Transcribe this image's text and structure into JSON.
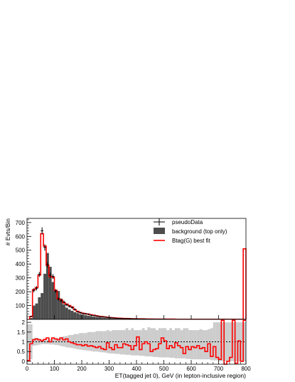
{
  "chart_data": [
    {
      "type": "bar",
      "panel": "main",
      "ylabel": "# Evts/Bin",
      "ylim": [
        0,
        730
      ],
      "yticks": [
        100,
        200,
        300,
        400,
        500,
        600,
        700
      ],
      "bin_width": 10,
      "x": [
        0,
        10,
        20,
        30,
        40,
        50,
        60,
        70,
        80,
        90,
        100,
        110,
        120,
        130,
        140,
        150,
        160,
        170,
        180,
        190,
        200,
        210,
        220,
        230,
        240,
        250,
        260,
        270,
        280,
        290,
        300,
        310,
        320,
        330,
        340,
        350,
        360,
        370,
        380,
        390,
        400,
        410,
        420,
        430,
        440,
        450,
        460,
        470,
        480,
        490,
        500,
        510,
        520,
        530,
        540,
        550,
        560,
        570,
        580,
        590,
        600,
        610,
        620,
        630,
        640,
        650,
        660,
        670,
        680,
        690,
        700,
        710,
        720,
        730,
        740,
        750,
        760,
        770,
        780,
        790
      ],
      "series": [
        {
          "name": "background (top only)",
          "style": "filled",
          "color": "#4d4d4d",
          "values": [
            0,
            10,
            100,
            115,
            160,
            190,
            330,
            480,
            380,
            270,
            205,
            205,
            150,
            110,
            85,
            72,
            62,
            52,
            45,
            38,
            34,
            30,
            26,
            23,
            20,
            17,
            15,
            13,
            11,
            9,
            8,
            7,
            6,
            5,
            5,
            4,
            4,
            3,
            3,
            3,
            2,
            2,
            2,
            2,
            1,
            1,
            1,
            1,
            1,
            1,
            1,
            1,
            1,
            1,
            1,
            1,
            1,
            1,
            1,
            1,
            1,
            1,
            1,
            1,
            1,
            1,
            1,
            1,
            1,
            1,
            1,
            1,
            1,
            1,
            1,
            1,
            1,
            1,
            1,
            1
          ]
        },
        {
          "name": "Btag(G) best fit",
          "style": "line",
          "color": "#ff0000",
          "values": [
            0,
            20,
            215,
            230,
            320,
            620,
            530,
            390,
            310,
            305,
            210,
            150,
            140,
            120,
            110,
            100,
            90,
            70,
            58,
            50,
            45,
            40,
            38,
            33,
            30,
            26,
            22,
            20,
            18,
            15,
            13,
            12,
            10,
            9,
            8,
            7,
            7,
            6,
            5,
            5,
            4,
            4,
            4,
            3,
            3,
            3,
            2,
            2,
            2,
            2,
            2,
            2,
            2,
            2,
            1,
            1,
            1,
            1,
            1,
            1,
            1,
            1,
            1,
            1,
            1,
            1,
            1,
            1,
            1,
            1,
            1,
            1,
            1,
            1,
            1,
            1,
            1,
            1,
            1,
            510
          ]
        },
        {
          "name": "pseudoData",
          "style": "points",
          "color": "#000000",
          "values": [
            0,
            22,
            210,
            225,
            325,
            640,
            520,
            395,
            320,
            310,
            205,
            148,
            135,
            125,
            105,
            95,
            85,
            72,
            55,
            48,
            42,
            40,
            36,
            30,
            28,
            24,
            20,
            19,
            17,
            14,
            12,
            11,
            9,
            8,
            7,
            6,
            6,
            5,
            5,
            4,
            4,
            3,
            3,
            3,
            2,
            2,
            2,
            2,
            2,
            2,
            2,
            1,
            1,
            1,
            1,
            1,
            1,
            1,
            1,
            1,
            1,
            1,
            1,
            1,
            1,
            1,
            1,
            1,
            1,
            1,
            1,
            1,
            1,
            1,
            1,
            1,
            1,
            1,
            1,
            1
          ]
        }
      ],
      "legend": {
        "placement": "top-right",
        "entries": [
          "pseudoData",
          "background (top only)",
          "Btag(G) best fit"
        ]
      }
    },
    {
      "type": "line",
      "panel": "ratio",
      "xlabel": "ET(tagged jet 0), GeV (in lepton-inclusive region)",
      "xlim": [
        0,
        800
      ],
      "xticks": [
        0,
        100,
        200,
        300,
        400,
        500,
        600,
        700,
        800
      ],
      "ylim": [
        -0.15,
        2.15
      ],
      "yticks": [
        0,
        0.5,
        1,
        1.5,
        2
      ],
      "reference_line": 1,
      "bin_width": 10,
      "x": [
        0,
        10,
        20,
        30,
        40,
        50,
        60,
        70,
        80,
        90,
        100,
        110,
        120,
        130,
        140,
        150,
        160,
        170,
        180,
        190,
        200,
        210,
        220,
        230,
        240,
        250,
        260,
        270,
        280,
        290,
        300,
        310,
        320,
        330,
        340,
        350,
        360,
        370,
        380,
        390,
        400,
        410,
        420,
        430,
        440,
        450,
        460,
        470,
        480,
        490,
        500,
        510,
        520,
        530,
        540,
        550,
        560,
        570,
        580,
        590,
        600,
        610,
        620,
        630,
        640,
        650,
        660,
        670,
        680,
        690,
        700,
        710,
        720,
        730,
        740,
        750,
        760,
        770,
        780,
        790
      ],
      "band_upper": [
        1.9,
        1.9,
        1.2,
        1.2,
        1.18,
        1.12,
        1.12,
        1.12,
        1.15,
        1.15,
        1.18,
        1.2,
        1.25,
        1.28,
        1.3,
        1.35,
        1.35,
        1.4,
        1.4,
        1.45,
        1.45,
        1.45,
        1.5,
        1.5,
        1.5,
        1.55,
        1.55,
        1.55,
        1.55,
        1.6,
        1.55,
        1.6,
        1.6,
        1.6,
        1.6,
        1.6,
        1.7,
        1.6,
        1.7,
        1.6,
        1.6,
        1.6,
        1.7,
        1.6,
        1.75,
        1.7,
        1.7,
        1.6,
        1.7,
        1.7,
        1.7,
        1.6,
        1.7,
        1.6,
        1.7,
        1.7,
        1.6,
        1.7,
        1.7,
        1.6,
        1.6,
        1.6,
        1.6,
        1.65,
        1.6,
        1.6,
        1.65,
        1.7,
        2.0,
        2.0,
        2.0,
        2.0,
        2.0,
        2.0,
        2.0,
        2.0,
        2.0,
        2.0,
        2.0,
        2.0
      ],
      "band_lower": [
        0.1,
        0.1,
        0.8,
        0.82,
        0.85,
        0.88,
        0.88,
        0.88,
        0.86,
        0.86,
        0.84,
        0.82,
        0.78,
        0.76,
        0.72,
        0.7,
        0.68,
        0.65,
        0.62,
        0.6,
        0.58,
        0.56,
        0.55,
        0.52,
        0.5,
        0.5,
        0.48,
        0.46,
        0.45,
        0.42,
        0.4,
        0.4,
        0.38,
        0.38,
        0.35,
        0.35,
        0.33,
        0.33,
        0.3,
        0.3,
        0.3,
        0.28,
        0.28,
        0.25,
        0.25,
        0.25,
        0.22,
        0.22,
        0.2,
        0.2,
        0.2,
        0.2,
        0.18,
        0.18,
        0.15,
        0.15,
        0.15,
        0.15,
        0.12,
        0.12,
        0.1,
        0.1,
        0.1,
        0.1,
        0.1,
        0.1,
        0.1,
        0.05,
        0.05,
        0.05,
        0,
        0,
        0,
        0,
        0,
        0,
        0,
        0,
        0,
        0
      ],
      "series": [
        {
          "name": "Btag(G) best fit",
          "color": "#ff0000",
          "values": [
            0.05,
            0.9,
            1.1,
            1.15,
            1.1,
            1.05,
            1.12,
            1.2,
            1.0,
            1.2,
            1.15,
            1.1,
            1.2,
            1.1,
            1.15,
            1.0,
            0.95,
            0.9,
            0.85,
            0.85,
            0.8,
            0.85,
            0.78,
            0.8,
            0.75,
            0.7,
            0.75,
            0.65,
            0.6,
            0.95,
            0.7,
            0.6,
            0.85,
            0.7,
            0.7,
            0.9,
            0.85,
            0.8,
            0.6,
            0.8,
            1.25,
            0.6,
            0.9,
            1.0,
            0.9,
            0.5,
            0.6,
            0.65,
            0.9,
            1.2,
            1.05,
            0.65,
            0.8,
            0.7,
            0.95,
            0.8,
            0.7,
            0.4,
            0.75,
            0.6,
            0.75,
            0.7,
            0.8,
            0.65,
            0.7,
            0.5,
            0.9,
            0.25,
            0.75,
            0.2,
            0.1,
            2.1,
            -0.15,
            0.0,
            0.2,
            2.1,
            -0.1,
            1.05,
            0.0,
            2.1
          ]
        }
      ]
    }
  ]
}
